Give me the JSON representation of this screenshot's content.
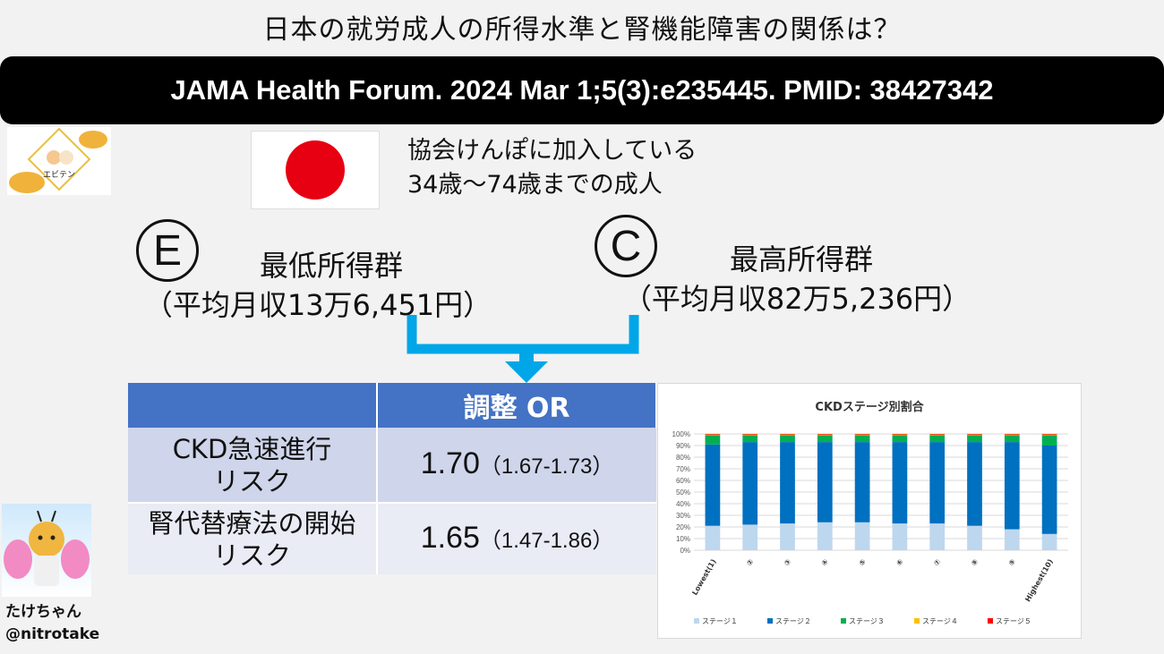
{
  "title": "日本の就労成人の所得水準と腎機能障害の関係は？",
  "citation": "JAMA Health Forum. 2024 Mar 1;5(3):e235445. PMID: 38427342",
  "logo_text": "エビテン",
  "population": {
    "line1": "協会けんぽに加入している",
    "line2": "34歳〜74歳までの成人"
  },
  "exposure": {
    "letter": "E",
    "name": "最低所得群",
    "detail": "（平均月収13万6,451円）"
  },
  "control": {
    "letter": "C",
    "name": "最高所得群",
    "detail": "（平均月収82万5,236円）"
  },
  "table": {
    "header": "調整 OR",
    "rows": [
      {
        "label_l1": "CKD急速進行",
        "label_l2": "リスク",
        "value": "1.70",
        "ci": "（1.67-1.73）"
      },
      {
        "label_l1": "腎代替療法の開始",
        "label_l2": "リスク",
        "value": "1.65",
        "ci": "（1.47-1.86）"
      }
    ]
  },
  "chart_data": {
    "type": "bar",
    "stacked": true,
    "title": "CKDステージ別割合",
    "categories": [
      "Lowest(1)",
      "②",
      "③",
      "④",
      "⑤",
      "⑥",
      "⑦",
      "⑧",
      "⑨",
      "Highest(10)"
    ],
    "ylim": [
      0,
      100
    ],
    "yticks": [
      "0%",
      "10%",
      "20%",
      "30%",
      "40%",
      "50%",
      "60%",
      "70%",
      "80%",
      "90%",
      "100%"
    ],
    "grid": true,
    "legend_position": "bottom",
    "series": [
      {
        "name": "ステージ１",
        "color": "#bdd7ee",
        "values": [
          21,
          22,
          23,
          24,
          24,
          23,
          23,
          21,
          18,
          14
        ]
      },
      {
        "name": "ステージ２",
        "color": "#0070c0",
        "values": [
          70,
          71,
          70,
          69,
          69,
          70,
          70,
          72,
          75,
          76
        ]
      },
      {
        "name": "ステージ３",
        "color": "#00b050",
        "values": [
          8,
          6,
          6,
          6,
          6,
          6,
          6,
          6,
          6,
          9
        ]
      },
      {
        "name": "ステージ４",
        "color": "#ffc000",
        "values": [
          0.5,
          0.5,
          0.5,
          0.5,
          0.5,
          0.5,
          0.5,
          0.5,
          0.5,
          0.5
        ]
      },
      {
        "name": "ステージ５",
        "color": "#ff0000",
        "values": [
          0.5,
          0.5,
          0.5,
          0.5,
          0.5,
          0.5,
          0.5,
          0.5,
          0.5,
          0.5
        ]
      }
    ]
  },
  "author": {
    "name": "たけちゃん",
    "handle": "@nitrotake"
  }
}
